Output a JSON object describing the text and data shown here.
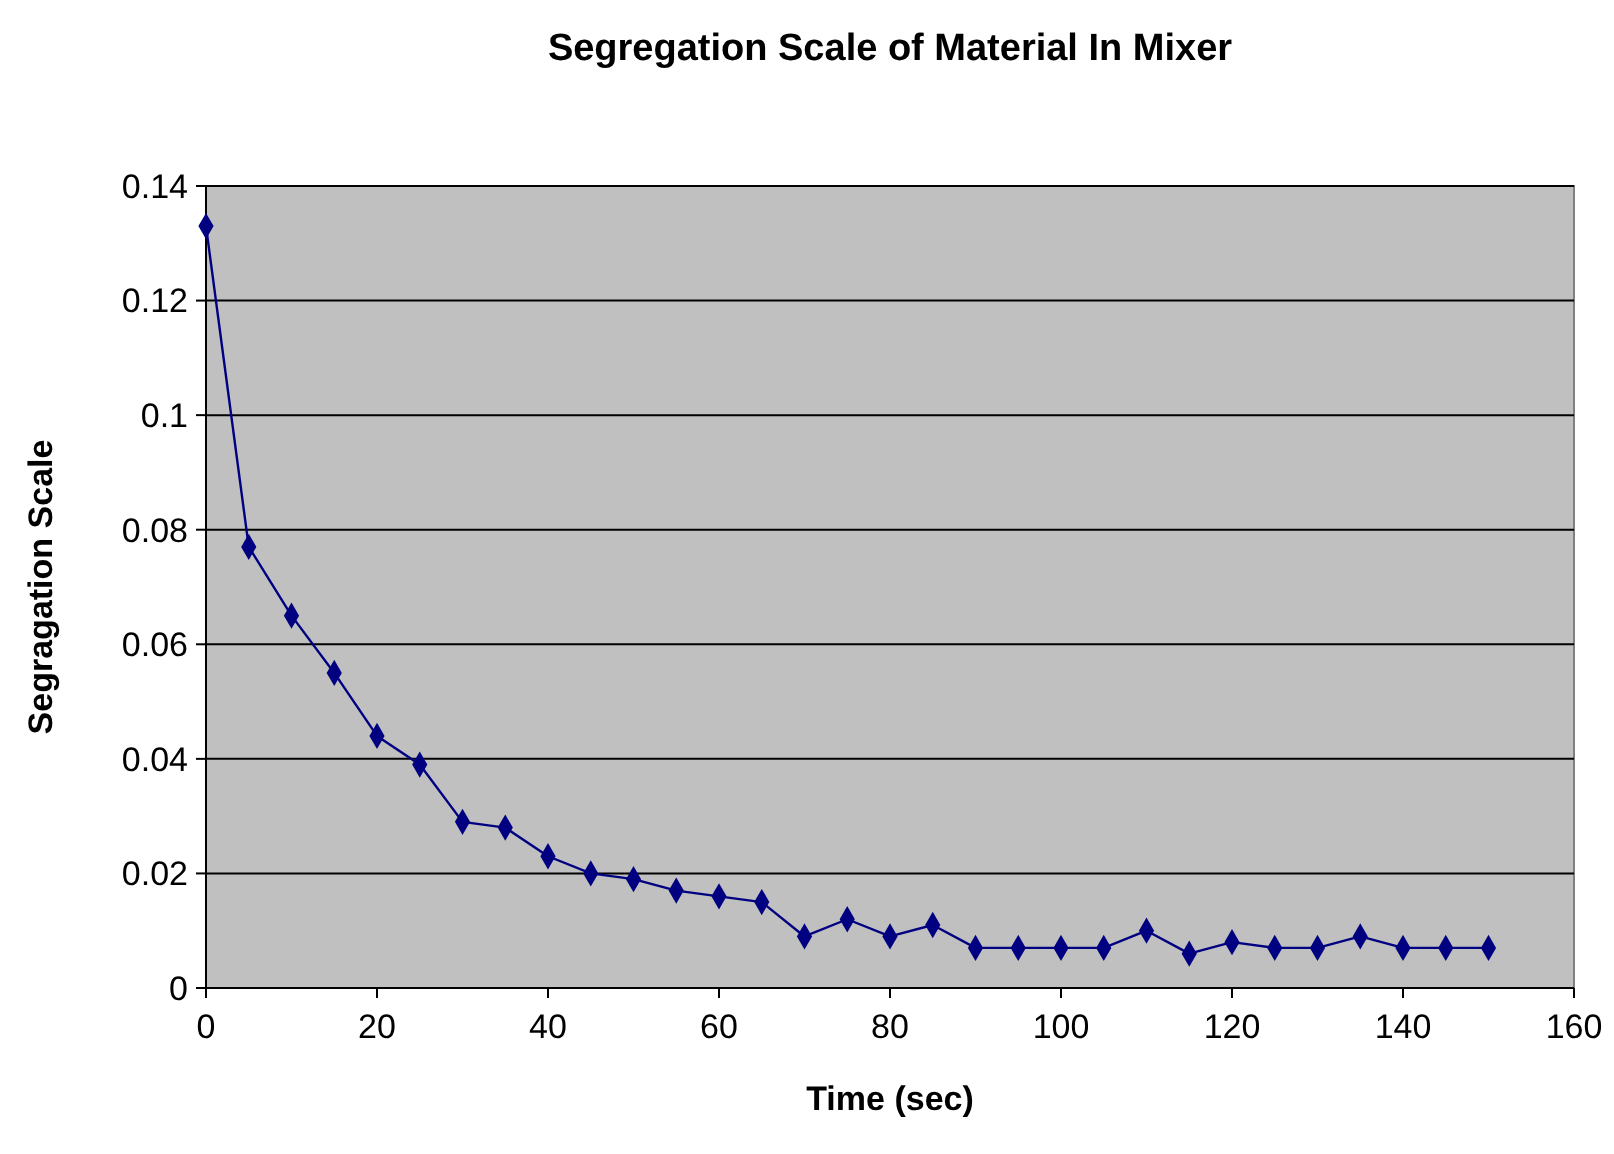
{
  "chart_data": {
    "type": "line",
    "title": "Segregation Scale of Material In Mixer",
    "xlabel": "Time (sec)",
    "ylabel": "Segragation Scale",
    "x": [
      0,
      5,
      10,
      15,
      20,
      25,
      30,
      35,
      40,
      45,
      50,
      55,
      60,
      65,
      70,
      75,
      80,
      85,
      90,
      95,
      100,
      105,
      110,
      115,
      120,
      125,
      130,
      135,
      140,
      145,
      150
    ],
    "series": [
      {
        "color": "#000080",
        "values": [
          0.133,
          0.077,
          0.065,
          0.055,
          0.044,
          0.039,
          0.029,
          0.028,
          0.023,
          0.02,
          0.019,
          0.017,
          0.016,
          0.015,
          0.009,
          0.012,
          0.009,
          0.011,
          0.007,
          0.007,
          0.007,
          0.007,
          0.01,
          0.006,
          0.008,
          0.007,
          0.007,
          0.009,
          0.007,
          0.007,
          0.007
        ]
      }
    ],
    "xlim": [
      0,
      160
    ],
    "xticks": [
      0,
      20,
      40,
      60,
      80,
      100,
      120,
      140,
      160
    ],
    "ylim": [
      0,
      0.14
    ],
    "yticks": [
      0,
      0.02,
      0.04,
      0.06,
      0.08,
      0.1,
      0.12,
      0.14
    ],
    "grid": "y",
    "marker": "diamond",
    "line_style": "solid"
  }
}
